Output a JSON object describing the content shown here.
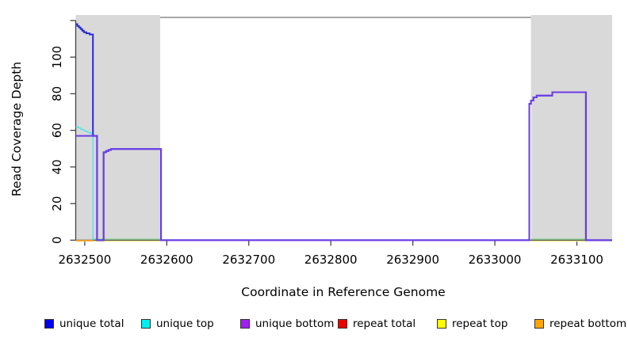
{
  "chart_data": {
    "type": "line",
    "subtype": "step-coverage",
    "title": "",
    "xlabel": "Coordinate in Reference Genome",
    "ylabel": "Read Coverage Depth",
    "xlim": [
      2632489,
      2633143
    ],
    "ylim": [
      0,
      120.5
    ],
    "xticks": [
      2632500,
      2632600,
      2632700,
      2632800,
      2632900,
      2633000,
      2633100
    ],
    "yticks": [
      0,
      20,
      40,
      60,
      80,
      100,
      120
    ],
    "ytick_labels": [
      "0",
      "20",
      "40",
      "60",
      "80",
      "100",
      ""
    ],
    "grid": false,
    "legend_position": "bottom",
    "shaded_regions": [
      {
        "x0": 2632489,
        "x1": 2632592,
        "color": "#d9d9d9",
        "meaning": "repeat region"
      },
      {
        "x0": 2633044,
        "x1": 2633143,
        "color": "#d9d9d9",
        "meaning": "repeat region"
      }
    ],
    "box_top_color": "#8a8a8a",
    "axis_color": "#444444",
    "series": [
      {
        "name": "repeat top (zero baseline)",
        "color": "#efe98f",
        "width": 1.4,
        "steps": [
          [
            2632489,
            -0.5
          ],
          [
            2632592,
            -0.5
          ]
        ]
      },
      {
        "name": "repeat top (zero baseline, right)",
        "color": "#efe98f",
        "width": 1.4,
        "steps": [
          [
            2633044,
            -0.5
          ],
          [
            2633111,
            -0.5
          ]
        ]
      },
      {
        "name": "repeat bottom (zero baseline)",
        "color": "#ff9a1e",
        "width": 1.6,
        "steps": [
          [
            2632489,
            -0.2
          ],
          [
            2632511,
            -0.2
          ]
        ]
      },
      {
        "name": "unique/repeat top overlap (zero baseline)",
        "color": "#8cd98c",
        "width": 1.3,
        "steps": [
          [
            2632511,
            0.6
          ],
          [
            2632592,
            0.6
          ]
        ]
      },
      {
        "name": "unique/repeat top overlap (zero baseline, right)",
        "color": "#8cd98c",
        "width": 1.3,
        "steps": [
          [
            2633044,
            0.6
          ],
          [
            2633111,
            0.6
          ]
        ]
      },
      {
        "name": "unique top",
        "color": "#4fe3ea",
        "width": 1.3,
        "steps": [
          [
            2632489,
            62
          ],
          [
            2632492,
            61.3
          ],
          [
            2632495,
            60.6
          ],
          [
            2632498,
            60
          ],
          [
            2632501,
            59.4
          ],
          [
            2632504,
            58.8
          ],
          [
            2632507,
            58.2
          ],
          [
            2632510,
            0.6
          ],
          [
            2632512,
            0.6
          ]
        ]
      },
      {
        "name": "unique total",
        "color": "#2b2bd5",
        "width": 2,
        "steps": [
          [
            2632489,
            118
          ],
          [
            2632491,
            117
          ],
          [
            2632493,
            116.2
          ],
          [
            2632495,
            115.3
          ],
          [
            2632497,
            114.4
          ],
          [
            2632499,
            113.6
          ],
          [
            2632502,
            113
          ],
          [
            2632506,
            112.4
          ],
          [
            2632510,
            57
          ],
          [
            2632515,
            0
          ],
          [
            2632523,
            48
          ],
          [
            2632526,
            48.7
          ],
          [
            2632529,
            49.3
          ],
          [
            2632532,
            49.8
          ],
          [
            2632593,
            0
          ],
          [
            2633042,
            74.5
          ],
          [
            2633044,
            76.3
          ],
          [
            2633047,
            78
          ],
          [
            2633051,
            79
          ],
          [
            2633070,
            80.8
          ],
          [
            2633111,
            0
          ],
          [
            2633143,
            0
          ]
        ]
      },
      {
        "name": "unique bottom",
        "color": "#6b3be8",
        "width": 2,
        "steps": [
          [
            2632489,
            57
          ],
          [
            2632515,
            0
          ],
          [
            2632523,
            48
          ],
          [
            2632526,
            48.7
          ],
          [
            2632529,
            49.3
          ],
          [
            2632532,
            49.8
          ],
          [
            2632593,
            0
          ],
          [
            2633042,
            74.5
          ],
          [
            2633044,
            76.3
          ],
          [
            2633047,
            78
          ],
          [
            2633051,
            79
          ],
          [
            2633070,
            80.8
          ],
          [
            2633111,
            0
          ],
          [
            2633143,
            0
          ]
        ]
      }
    ]
  },
  "legend": {
    "items": [
      {
        "label": "unique total",
        "color": "#0000ee"
      },
      {
        "label": "unique top",
        "color": "#00eeee"
      },
      {
        "label": "unique bottom",
        "color": "#a020f0"
      },
      {
        "label": "repeat total",
        "color": "#ee0000"
      },
      {
        "label": "repeat top",
        "color": "#ffff00"
      },
      {
        "label": "repeat bottom",
        "color": "#ffa500"
      }
    ]
  }
}
